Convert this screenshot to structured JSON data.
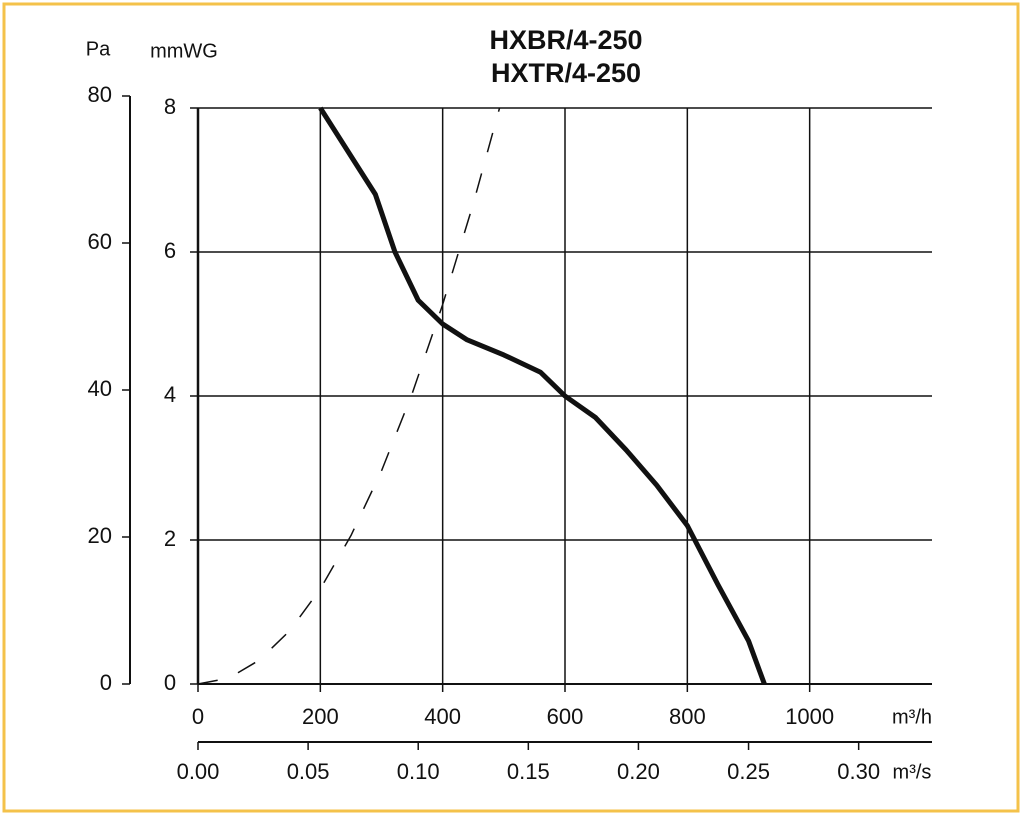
{
  "chart_data": {
    "type": "line",
    "title": [
      "HXBR/4-250",
      "HXTR/4-250"
    ],
    "xlabel": "m³/h",
    "ylabel": "mmWG",
    "y2label": "Pa",
    "x2label": "m³/s",
    "xlim": [
      0,
      1200
    ],
    "xticks": [
      0,
      200,
      400,
      600,
      800,
      1000
    ],
    "ylim": [
      0,
      8
    ],
    "yticks": [
      0,
      2,
      4,
      6,
      8
    ],
    "y2lim": [
      0,
      80
    ],
    "y2ticks": [
      0,
      20,
      40,
      60,
      80
    ],
    "x2lim": [
      0,
      0.3333
    ],
    "x2ticks": [
      {
        "value": 0,
        "label": "0.00"
      },
      0.05,
      {
        "value": 0.1,
        "label": "0.10"
      },
      0.15,
      {
        "value": 0.2,
        "label": "0.20"
      },
      0.25,
      {
        "value": 0.3,
        "label": "0.30"
      }
    ],
    "grid": true,
    "series": [
      {
        "color": "#111111",
        "line_style": "solid",
        "x": [
          200,
          260,
          290,
          322,
          360,
          400,
          440,
          500,
          560,
          600,
          650,
          700,
          750,
          800,
          850,
          900,
          926
        ],
        "values": [
          8.0,
          7.2,
          6.8,
          6.0,
          5.33,
          5.0,
          4.78,
          4.57,
          4.33,
          4.0,
          3.7,
          3.25,
          2.76,
          2.2,
          1.38,
          0.6,
          0
        ]
      },
      {
        "color": "#111111",
        "line_style": "dashed",
        "x": [
          0,
          50,
          100,
          150,
          200,
          250,
          300,
          350,
          400,
          450,
          493
        ],
        "values": [
          0,
          0.08,
          0.33,
          0.74,
          1.32,
          2.06,
          2.96,
          4.03,
          5.27,
          6.67,
          8.0
        ]
      }
    ]
  }
}
